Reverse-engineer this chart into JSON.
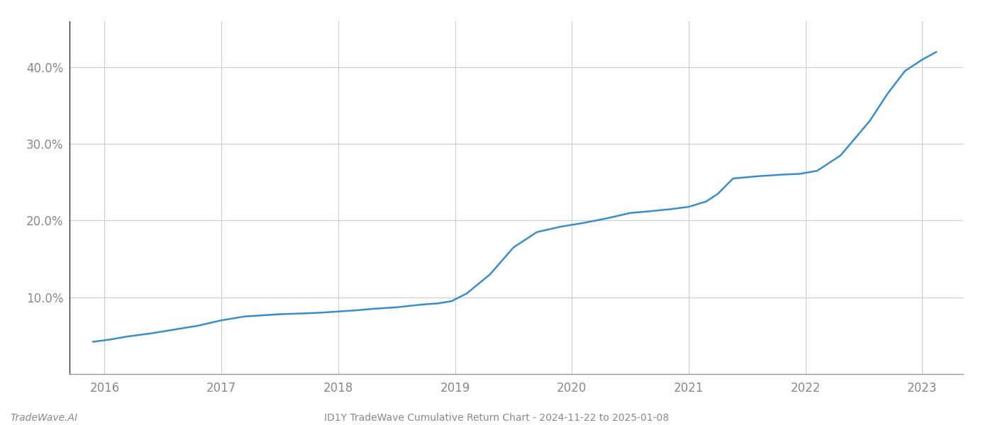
{
  "title": "ID1Y TradeWave Cumulative Return Chart - 2024-11-22 to 2025-01-08",
  "watermark": "TradeWave.AI",
  "line_color": "#3a8dc8",
  "background_color": "#ffffff",
  "grid_color": "#cccccc",
  "x_years": [
    2016,
    2017,
    2018,
    2019,
    2020,
    2021,
    2022,
    2023
  ],
  "x_values": [
    2015.9,
    2016.05,
    2016.2,
    2016.4,
    2016.6,
    2016.8,
    2017.0,
    2017.2,
    2017.5,
    2017.7,
    2017.85,
    2017.95,
    2018.05,
    2018.15,
    2018.3,
    2018.5,
    2018.62,
    2018.75,
    2018.85,
    2018.97,
    2019.1,
    2019.3,
    2019.5,
    2019.7,
    2019.9,
    2020.1,
    2020.3,
    2020.5,
    2020.65,
    2020.85,
    2021.0,
    2021.15,
    2021.25,
    2021.38,
    2021.6,
    2021.8,
    2021.95,
    2022.1,
    2022.3,
    2022.55,
    2022.7,
    2022.85,
    2023.0,
    2023.12
  ],
  "y_values": [
    4.2,
    4.5,
    4.9,
    5.3,
    5.8,
    6.3,
    7.0,
    7.5,
    7.8,
    7.9,
    8.0,
    8.1,
    8.2,
    8.3,
    8.5,
    8.7,
    8.9,
    9.1,
    9.2,
    9.5,
    10.5,
    13.0,
    16.5,
    18.5,
    19.2,
    19.7,
    20.3,
    21.0,
    21.2,
    21.5,
    21.8,
    22.5,
    23.5,
    25.5,
    25.8,
    26.0,
    26.1,
    26.5,
    28.5,
    33.0,
    36.5,
    39.5,
    41.0,
    42.0
  ],
  "xlim": [
    2015.7,
    2023.35
  ],
  "ylim": [
    0,
    46
  ],
  "yticks": [
    10.0,
    20.0,
    30.0,
    40.0
  ],
  "ytick_labels": [
    "10.0%",
    "20.0%",
    "30.0%",
    "40.0%"
  ],
  "title_fontsize": 10,
  "watermark_fontsize": 10,
  "line_width": 1.8,
  "tick_label_color": "#888888",
  "spine_color": "#999999"
}
